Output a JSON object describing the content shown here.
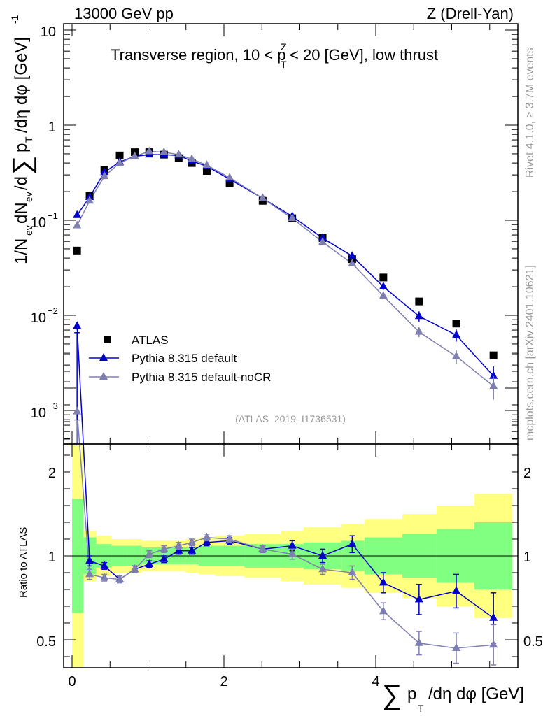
{
  "header": {
    "left": "13000 GeV pp",
    "right": "Z (Drell-Yan)"
  },
  "side": {
    "rivet": "Rivet 4.1.0, ≥ 3.7M events",
    "mcplots": "mcplots.cern.ch [arXiv:2401.10621]"
  },
  "chart_data": [
    {
      "type": "scatter",
      "panel": "main",
      "title": "Transverse region, 10 < pT^Z < 20 [GeV], low thrust",
      "ylabel": "1/N_ev dN_ev/d Σ pT /dη dφ [GeV]^-1",
      "yscale": "log",
      "ylim": [
        0.0006,
        13
      ],
      "xlim": [
        -0.2,
        5.9
      ],
      "ytick_labels": [
        "10",
        "1",
        "10^-1",
        "10^-2",
        "10^-3"
      ],
      "analysis_label": "(ATLAS_2019_I1736531)",
      "legend": [
        "ATLAS",
        "Pythia 8.315 default",
        "Pythia 8.315 default-noCR"
      ],
      "legend_position": "bottom-left",
      "x": [
        0.066,
        0.231,
        0.426,
        0.627,
        0.825,
        1.016,
        1.21,
        1.404,
        1.577,
        1.774,
        2.075,
        2.51,
        2.9,
        3.3,
        3.69,
        4.1,
        4.57,
        5.06,
        5.55
      ],
      "series": [
        {
          "name": "ATLAS",
          "color": "#000000",
          "marker": "square",
          "values": [
            0.048,
            0.18,
            0.34,
            0.48,
            0.52,
            0.52,
            0.49,
            0.45,
            0.4,
            0.33,
            0.245,
            0.16,
            0.105,
            0.065,
            0.039,
            0.025,
            0.014,
            0.0082,
            0.0038
          ]
        },
        {
          "name": "Pythia 8.315 default",
          "color": "#0000cc",
          "marker": "triangle",
          "values": [
            0.113,
            0.175,
            0.32,
            0.41,
            0.47,
            0.49,
            0.49,
            0.48,
            0.42,
            0.37,
            0.27,
            0.17,
            0.11,
            0.065,
            0.042,
            0.02,
            0.0098,
            0.0062,
            0.0023
          ],
          "errors": [
            0,
            0,
            0,
            0,
            0,
            0,
            0,
            0,
            0,
            0,
            0,
            0,
            0,
            0,
            0,
            0.0015,
            0.0012,
            0.0009,
            0.0006
          ]
        },
        {
          "name": "Pythia 8.315 default-noCR",
          "color": "#7f7fb2",
          "marker": "triangle",
          "values": [
            0.088,
            0.16,
            0.29,
            0.4,
            0.47,
            0.53,
            0.52,
            0.49,
            0.44,
            0.38,
            0.28,
            0.17,
            0.105,
            0.059,
            0.035,
            0.016,
            0.0067,
            0.0037,
            0.0018
          ],
          "errors": [
            0,
            0,
            0,
            0,
            0,
            0,
            0,
            0,
            0,
            0,
            0,
            0,
            0,
            0,
            0,
            0.0012,
            0.0008,
            0.0006,
            0.0005
          ]
        }
      ]
    },
    {
      "type": "line",
      "panel": "ratio",
      "ylabel": "Ratio to ATLAS",
      "xlabel": "Σ pT /dη dφ [GeV]",
      "ylim": [
        0.34,
        2.35
      ],
      "ytick_labels": [
        "2",
        "1",
        "0.5"
      ],
      "xtick_labels": [
        "0",
        "2",
        "4"
      ],
      "x": [
        0.066,
        0.231,
        0.426,
        0.627,
        0.825,
        1.016,
        1.21,
        1.404,
        1.577,
        1.774,
        2.075,
        2.51,
        2.9,
        3.3,
        3.69,
        4.1,
        4.57,
        5.06,
        5.55
      ],
      "bin_edges": [
        0,
        0.15,
        0.32,
        0.52,
        0.72,
        0.92,
        1.11,
        1.3,
        1.49,
        1.67,
        1.88,
        2.27,
        2.75,
        3.05,
        3.55,
        3.85,
        4.35,
        4.8,
        5.3,
        5.8
      ],
      "band_green": [
        0.34,
        0.11,
        0.07,
        0.06,
        0.06,
        0.05,
        0.05,
        0.05,
        0.05,
        0.06,
        0.06,
        0.07,
        0.07,
        0.08,
        0.09,
        0.11,
        0.13,
        0.16,
        0.2
      ],
      "band_yellow": [
        0.7,
        0.15,
        0.12,
        0.1,
        0.1,
        0.09,
        0.09,
        0.09,
        0.1,
        0.11,
        0.12,
        0.13,
        0.15,
        0.17,
        0.19,
        0.22,
        0.25,
        0.3,
        0.37
      ],
      "series": [
        {
          "name": "Pythia 8.315 default",
          "color": "#0000cc",
          "values": [
            2.37,
            0.97,
            0.94,
            0.86,
            0.92,
            0.95,
            0.98,
            1.03,
            1.03,
            1.08,
            1.09,
            1.04,
            1.06,
            1.0,
            1.07,
            0.84,
            0.74,
            0.79,
            0.63
          ],
          "errors": [
            0.04,
            0.03,
            0.02,
            0.02,
            0.02,
            0.02,
            0.02,
            0.02,
            0.02,
            0.02,
            0.02,
            0.02,
            0.03,
            0.04,
            0.05,
            0.06,
            0.09,
            0.1,
            0.15
          ]
        },
        {
          "name": "Pythia 8.315 default-noCR",
          "color": "#7f7fb2",
          "values": [
            1.86,
            0.89,
            0.87,
            0.86,
            0.92,
            1.01,
            1.04,
            1.06,
            1.08,
            1.11,
            1.1,
            1.04,
            1.01,
            0.92,
            0.9,
            0.67,
            0.48,
            0.45,
            0.47
          ],
          "errors": [
            0.05,
            0.03,
            0.02,
            0.02,
            0.02,
            0.02,
            0.02,
            0.02,
            0.02,
            0.02,
            0.02,
            0.02,
            0.03,
            0.03,
            0.04,
            0.05,
            0.07,
            0.09,
            0.12
          ]
        }
      ]
    }
  ]
}
